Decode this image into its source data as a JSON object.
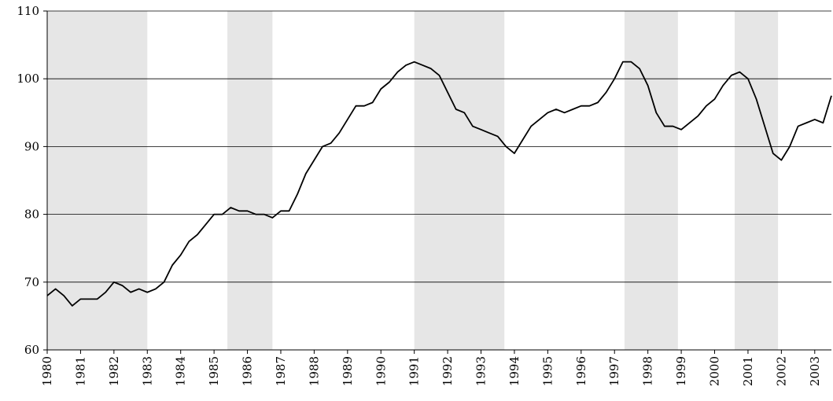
{
  "chart_data": {
    "type": "line",
    "x": [
      1980,
      1980.25,
      1980.5,
      1980.75,
      1981,
      1981.25,
      1981.5,
      1981.75,
      1982,
      1982.25,
      1982.5,
      1982.75,
      1983,
      1983.25,
      1983.5,
      1983.75,
      1984,
      1984.25,
      1984.5,
      1984.75,
      1985,
      1985.25,
      1985.5,
      1985.75,
      1986,
      1986.25,
      1986.5,
      1986.75,
      1987,
      1987.25,
      1987.5,
      1987.75,
      1988,
      1988.25,
      1988.5,
      1988.75,
      1989,
      1989.25,
      1989.5,
      1989.75,
      1990,
      1990.25,
      1990.5,
      1990.75,
      1991,
      1991.25,
      1991.5,
      1991.75,
      1992,
      1992.25,
      1992.5,
      1992.75,
      1993,
      1993.25,
      1993.5,
      1993.75,
      1994,
      1994.25,
      1994.5,
      1994.75,
      1995,
      1995.25,
      1995.5,
      1995.75,
      1996,
      1996.25,
      1996.5,
      1996.75,
      1997,
      1997.25,
      1997.5,
      1997.75,
      1998,
      1998.25,
      1998.5,
      1998.75,
      1999,
      1999.25,
      1999.5,
      1999.75,
      2000,
      2000.25,
      2000.5,
      2000.75,
      2001,
      2001.25,
      2001.5,
      2001.75,
      2002,
      2002.25,
      2002.5,
      2002.75,
      2003,
      2003.25,
      2003.5
    ],
    "series": [
      {
        "color": "#000000",
        "values": [
          68,
          69,
          68,
          66.5,
          67.5,
          67.5,
          67.5,
          68.5,
          70,
          69.5,
          68.5,
          69,
          68.5,
          69,
          70,
          72.5,
          74,
          76,
          77,
          78.5,
          80,
          80,
          81,
          80.5,
          80.5,
          80,
          80,
          79.5,
          80.5,
          80.5,
          83,
          86,
          88,
          90,
          90.5,
          92,
          94,
          96,
          96,
          96.5,
          98.5,
          99.5,
          101,
          102,
          102.5,
          102,
          101.5,
          100.5,
          98,
          95.5,
          95,
          93,
          92.5,
          92,
          91.5,
          90,
          89,
          91,
          93,
          94,
          95,
          95.5,
          95,
          95.5,
          96,
          96,
          96.5,
          98,
          100,
          102.5,
          102.5,
          101.5,
          99,
          95,
          93,
          93,
          92.5,
          93.5,
          94.5,
          96,
          97,
          99,
          100.5,
          101,
          100,
          97,
          93,
          89,
          88,
          90,
          93,
          93.5,
          94,
          93.5,
          97.5
        ]
      }
    ],
    "shaded_spans": [
      [
        1980,
        1983
      ],
      [
        1985.4,
        1986.75
      ],
      [
        1991,
        1993.7
      ],
      [
        1997.3,
        1998.9
      ],
      [
        2000.6,
        2001.9
      ]
    ],
    "xlim": [
      1980,
      2003.5
    ],
    "xticks": [
      1980,
      1981,
      1982,
      1983,
      1984,
      1985,
      1986,
      1987,
      1988,
      1989,
      1990,
      1991,
      1992,
      1993,
      1994,
      1995,
      1996,
      1997,
      1998,
      1999,
      2000,
      2001,
      2002,
      2003
    ],
    "ylim": [
      60,
      110
    ],
    "yticks": [
      60,
      70,
      80,
      90,
      100,
      110
    ],
    "grid": true
  }
}
